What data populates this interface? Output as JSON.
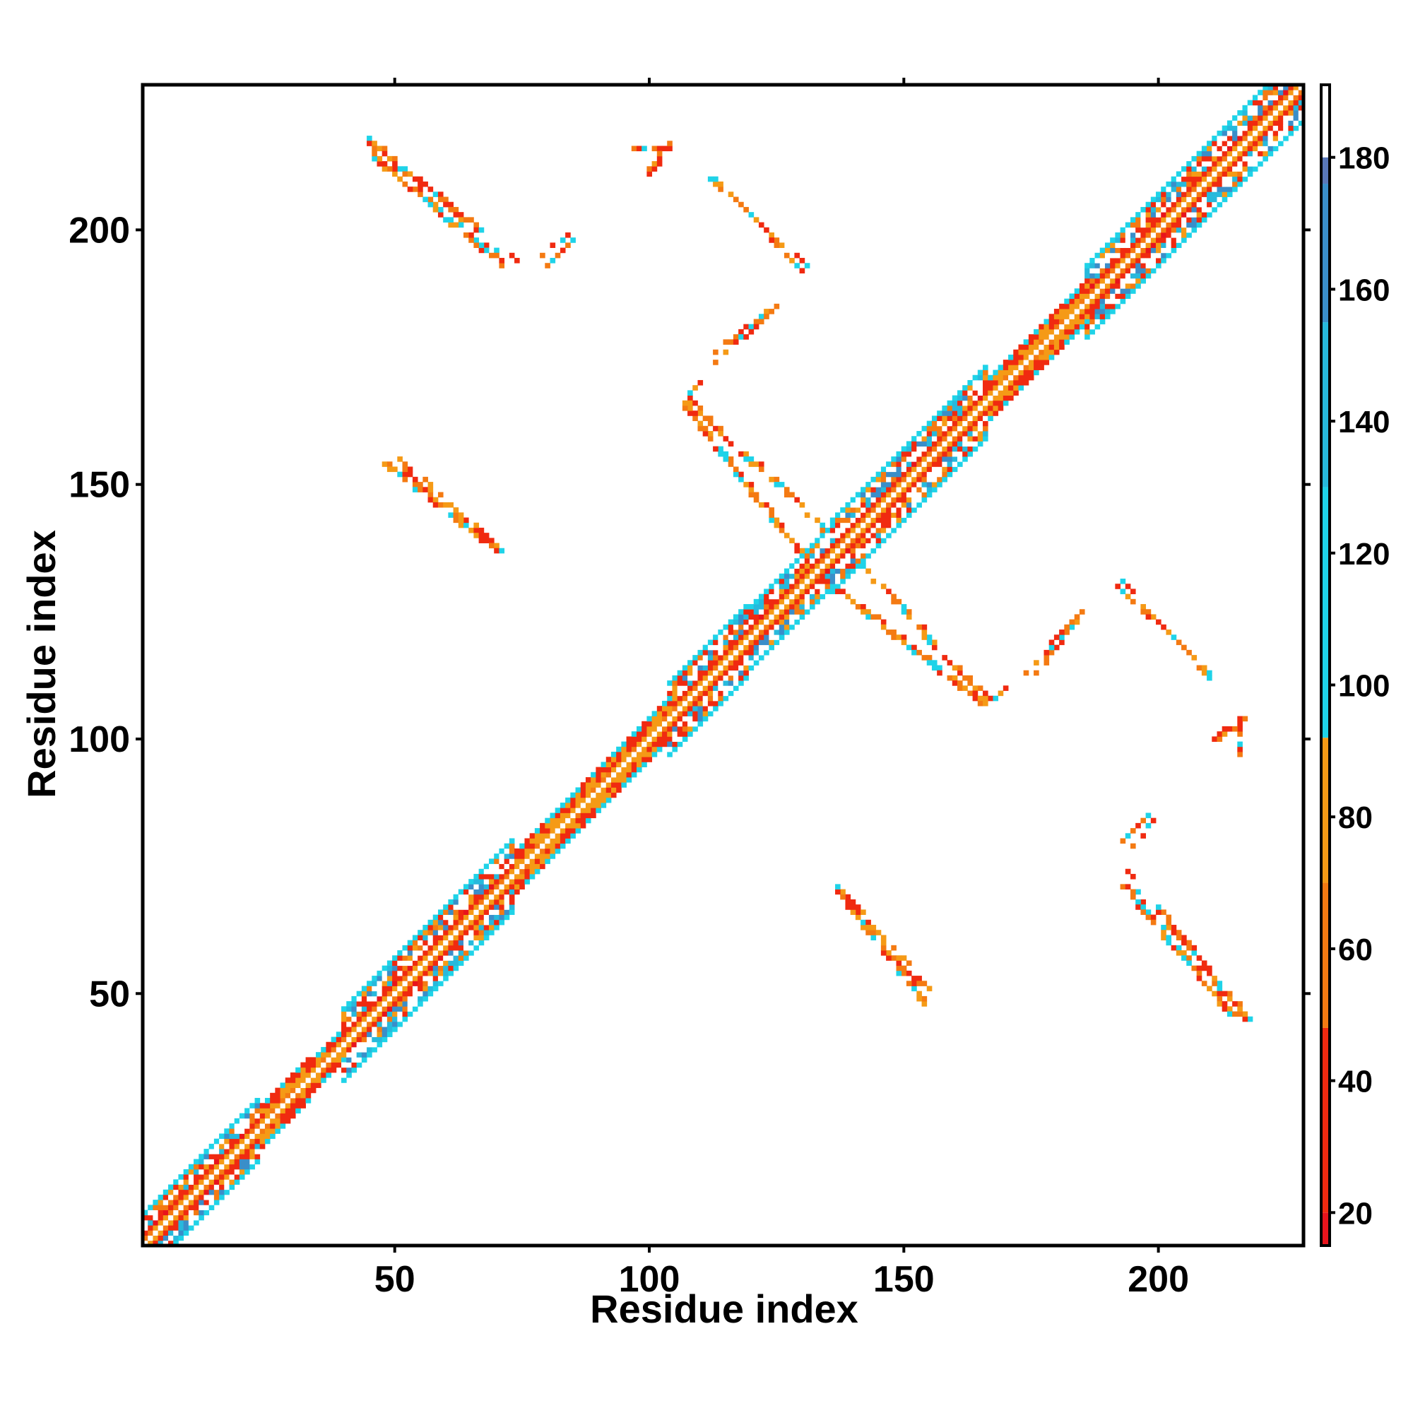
{
  "chart_data": {
    "type": "heatmap",
    "xlabel": "Residue index",
    "ylabel": "Residue index",
    "xlim": [
      1,
      228
    ],
    "ylim": [
      1,
      228
    ],
    "xticks": [
      50,
      100,
      150,
      200
    ],
    "yticks": [
      50,
      100,
      150,
      200
    ],
    "colorbar": {
      "range": [
        15,
        191
      ],
      "ticks": [
        20,
        40,
        60,
        80,
        100,
        120,
        140,
        160,
        180
      ],
      "bands": [
        {
          "from": 15,
          "to": 20,
          "color": "#e8141c"
        },
        {
          "from": 20,
          "to": 48,
          "color": "#f02a10"
        },
        {
          "from": 48,
          "to": 70,
          "color": "#f47a12"
        },
        {
          "from": 70,
          "to": 92,
          "color": "#f59a16"
        },
        {
          "from": 92,
          "to": 130,
          "color": "#1fd3e8"
        },
        {
          "from": 130,
          "to": 155,
          "color": "#27b9dc"
        },
        {
          "from": 155,
          "to": 176,
          "color": "#3a8ec9"
        },
        {
          "from": 176,
          "to": 180,
          "color": "#5a78b8"
        },
        {
          "from": 180,
          "to": 191,
          "color": "#ffffff"
        }
      ]
    },
    "diagonal": {
      "segments": [
        {
          "from": 1,
          "to": 23,
          "halfwidth": 6,
          "pattern": "helix"
        },
        {
          "from": 23,
          "to": 33,
          "halfwidth": 4,
          "pattern": "coil"
        },
        {
          "from": 33,
          "to": 40,
          "halfwidth": 3,
          "pattern": "coil"
        },
        {
          "from": 40,
          "to": 73,
          "halfwidth": 7,
          "pattern": "helix"
        },
        {
          "from": 73,
          "to": 97,
          "halfwidth": 4,
          "pattern": "coil"
        },
        {
          "from": 97,
          "to": 104,
          "halfwidth": 4,
          "pattern": "coil"
        },
        {
          "from": 104,
          "to": 119,
          "halfwidth": 7,
          "pattern": "helix"
        },
        {
          "from": 119,
          "to": 136,
          "halfwidth": 6,
          "pattern": "helix"
        },
        {
          "from": 136,
          "to": 166,
          "halfwidth": 7,
          "pattern": "helix"
        },
        {
          "from": 166,
          "to": 186,
          "halfwidth": 4,
          "pattern": "coil"
        },
        {
          "from": 186,
          "to": 228,
          "halfwidth": 7,
          "pattern": "helix"
        }
      ]
    },
    "off_diagonal_contacts": [
      {
        "x0": 44,
        "y0": 218,
        "x1": 66,
        "y1": 200,
        "width": 2
      },
      {
        "x0": 66,
        "y0": 198,
        "x1": 74,
        "y1": 194,
        "width": 1
      },
      {
        "x0": 79,
        "y0": 195,
        "x1": 86,
        "y1": 201,
        "width": 1
      },
      {
        "x0": 97,
        "y0": 216,
        "x1": 103,
        "y1": 216,
        "width": 2
      },
      {
        "x0": 112,
        "y0": 210,
        "x1": 131,
        "y1": 193,
        "width": 1
      },
      {
        "x0": 113,
        "y0": 176,
        "x1": 125,
        "y1": 185,
        "width": 1
      },
      {
        "x0": 107,
        "y0": 167,
        "x1": 134,
        "y1": 141,
        "width": 2
      },
      {
        "x0": 48,
        "y0": 154,
        "x1": 70,
        "y1": 137,
        "width": 2
      },
      {
        "x0": 136,
        "y0": 130,
        "x1": 165,
        "y1": 107,
        "width": 2
      },
      {
        "x0": 165,
        "y0": 106,
        "x1": 170,
        "y1": 110,
        "width": 1
      },
      {
        "x0": 174,
        "y0": 113,
        "x1": 184,
        "y1": 124,
        "width": 1
      },
      {
        "x0": 192,
        "y0": 130,
        "x1": 210,
        "y1": 113,
        "width": 1
      },
      {
        "x0": 211,
        "y0": 100,
        "x1": 216,
        "y1": 104,
        "width": 2
      },
      {
        "x0": 192,
        "y0": 79,
        "x1": 198,
        "y1": 85,
        "width": 1
      },
      {
        "x0": 136,
        "y0": 71,
        "x1": 154,
        "y1": 51,
        "width": 2
      },
      {
        "x0": 193,
        "y0": 71,
        "x1": 215,
        "y1": 45,
        "width": 2
      }
    ]
  }
}
